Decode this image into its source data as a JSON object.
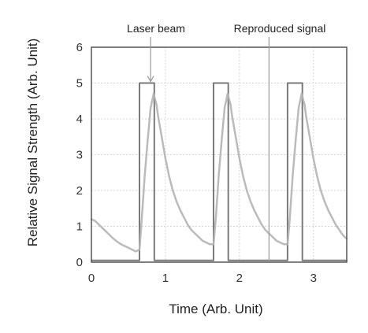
{
  "chart_data": {
    "type": "line",
    "title": "",
    "xlabel": "Time (Arb. Unit)",
    "ylabel": "Relative Signal Strength (Arb. Unit)",
    "xlim": [
      0,
      3.45
    ],
    "ylim": [
      0,
      6
    ],
    "x_ticks": [
      0,
      1,
      2,
      3
    ],
    "y_ticks": [
      0,
      1,
      2,
      3,
      4,
      5,
      6
    ],
    "grid": true,
    "colors": {
      "frame": "#555555",
      "grid": "#d6d6d6",
      "laser": "#7a7a7a",
      "signal": "#b4b4b4",
      "annotation_arrow": "#999999"
    },
    "annotations": [
      {
        "text": "Laser beam",
        "target": [
          0.8,
          5.0
        ]
      },
      {
        "text": "Reproduced signal",
        "target": [
          2.4,
          6.0
        ]
      }
    ],
    "series": [
      {
        "label_key": "laser",
        "shape": "step",
        "x": [
          0,
          0.65,
          0.65,
          0.85,
          0.85,
          1.65,
          1.65,
          1.85,
          1.85,
          2.65,
          2.65,
          2.85,
          2.85,
          3.45
        ],
        "y": [
          0.05,
          0.05,
          5.0,
          5.0,
          0.05,
          0.05,
          5.0,
          5.0,
          0.05,
          0.05,
          5.0,
          5.0,
          0.05,
          0.05
        ]
      },
      {
        "label_key": "signal",
        "shape": "curve",
        "x": [
          0.0,
          0.05,
          0.1,
          0.15,
          0.2,
          0.25,
          0.3,
          0.35,
          0.4,
          0.45,
          0.5,
          0.55,
          0.6,
          0.65,
          0.68,
          0.72,
          0.76,
          0.8,
          0.84,
          0.88,
          0.9,
          0.95,
          1.0,
          1.05,
          1.1,
          1.15,
          1.2,
          1.25,
          1.3,
          1.35,
          1.4,
          1.45,
          1.5,
          1.55,
          1.6,
          1.65,
          1.68,
          1.72,
          1.76,
          1.8,
          1.84,
          1.88,
          1.9,
          1.95,
          2.0,
          2.05,
          2.1,
          2.15,
          2.2,
          2.25,
          2.3,
          2.35,
          2.4,
          2.45,
          2.5,
          2.55,
          2.6,
          2.65,
          2.68,
          2.72,
          2.76,
          2.8,
          2.84,
          2.88,
          2.9,
          2.95,
          3.0,
          3.05,
          3.1,
          3.15,
          3.2,
          3.25,
          3.3,
          3.35,
          3.4,
          3.45
        ],
        "y": [
          1.2,
          1.15,
          1.05,
          0.95,
          0.85,
          0.75,
          0.65,
          0.57,
          0.5,
          0.45,
          0.4,
          0.35,
          0.3,
          0.35,
          1.2,
          2.4,
          3.4,
          4.3,
          4.7,
          4.4,
          4.1,
          3.5,
          2.9,
          2.4,
          2.0,
          1.7,
          1.45,
          1.25,
          1.05,
          0.9,
          0.8,
          0.7,
          0.6,
          0.55,
          0.5,
          0.5,
          1.2,
          2.4,
          3.4,
          4.3,
          4.7,
          4.4,
          4.1,
          3.5,
          2.9,
          2.4,
          2.0,
          1.7,
          1.45,
          1.25,
          1.05,
          0.9,
          0.8,
          0.7,
          0.6,
          0.55,
          0.5,
          0.5,
          1.2,
          2.4,
          3.4,
          4.3,
          4.7,
          4.4,
          4.1,
          3.5,
          2.9,
          2.4,
          2.0,
          1.7,
          1.45,
          1.25,
          1.05,
          0.9,
          0.75,
          0.65
        ]
      }
    ]
  }
}
